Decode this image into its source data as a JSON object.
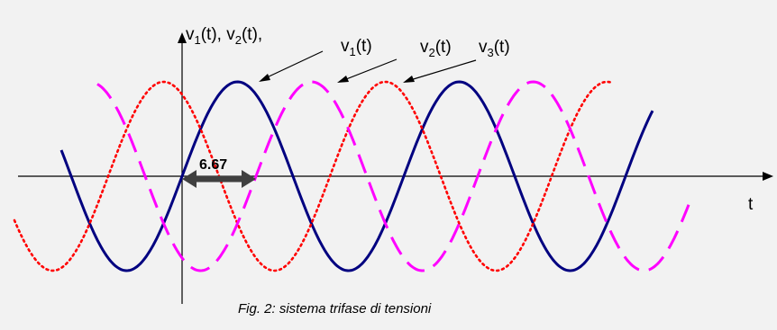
{
  "axis_y_label": {
    "v1": "v",
    "s1": "1",
    "t1": "(t), ",
    "v2": "v",
    "s2": "2",
    "t2": "(t),"
  },
  "axis_x_label": "t",
  "wave_labels": [
    {
      "v": "v",
      "sub": "1",
      "rest": "(t)"
    },
    {
      "v": "v",
      "sub": "2",
      "rest": "(t)"
    },
    {
      "v": "v",
      "sub": "3",
      "rest": "(t)"
    }
  ],
  "shift_label": "6.67",
  "caption": "Fig. 2: sistema trifase di tensioni",
  "colors": {
    "background": "#f2f2f2",
    "v1": "#000080",
    "v2": "#ff0000",
    "v3": "#ff00ff",
    "axis": "#000000",
    "arrow": "#404040"
  },
  "waves": [
    {
      "name": "v1",
      "style": "solid",
      "phase_deg": 0
    },
    {
      "name": "v2",
      "style": "dotted",
      "phase_deg": 120
    },
    {
      "name": "v3",
      "style": "dashed",
      "phase_deg": -120
    }
  ]
}
